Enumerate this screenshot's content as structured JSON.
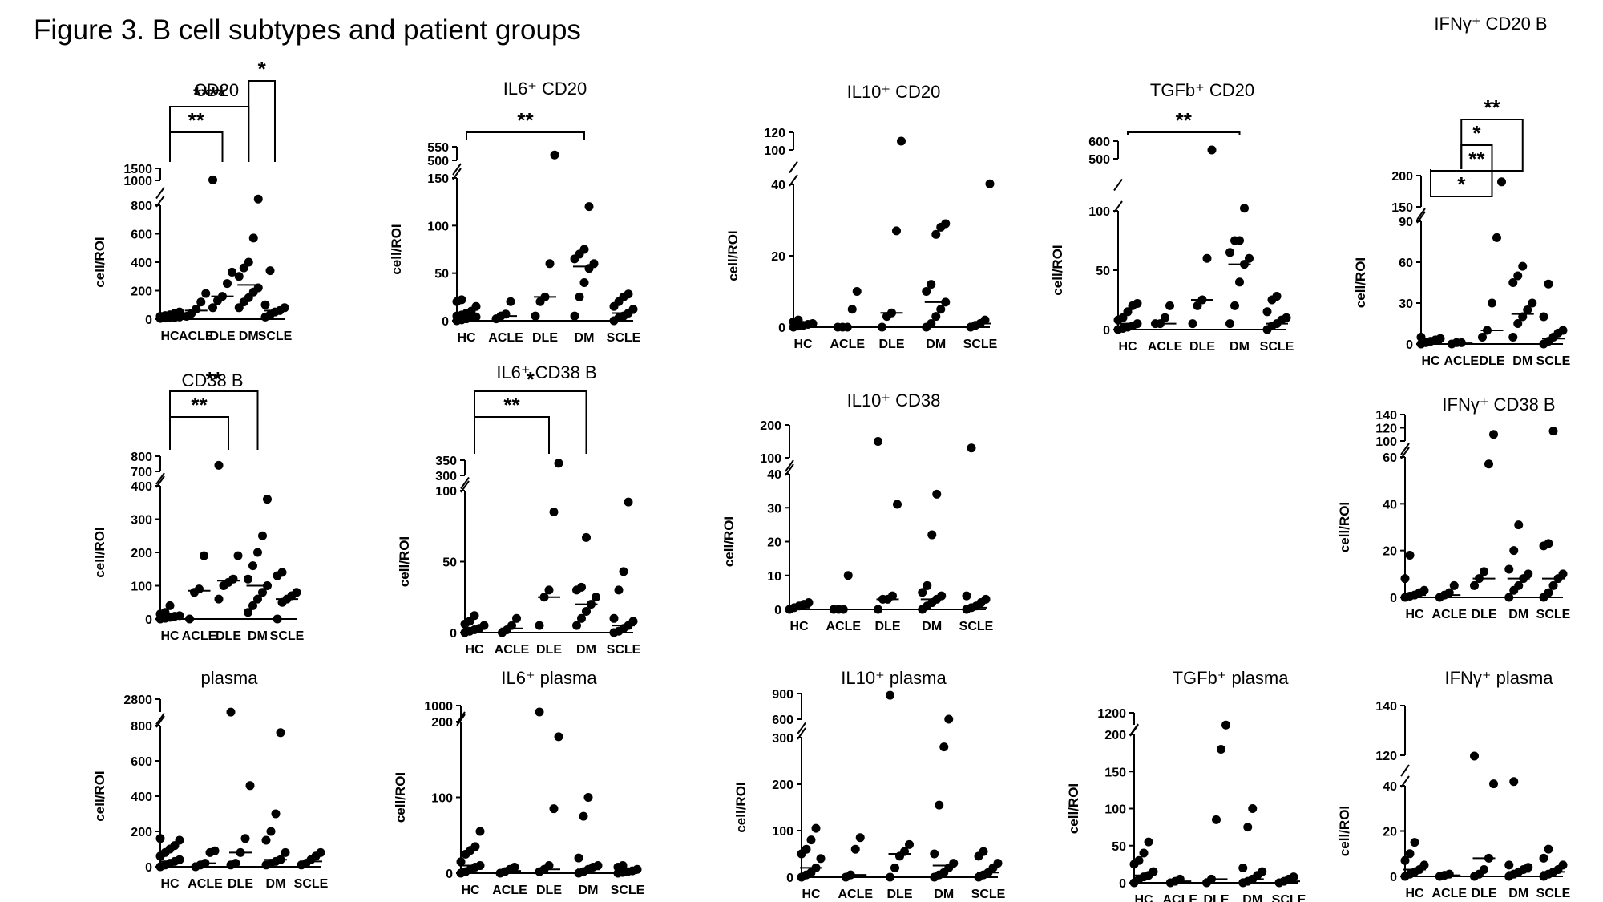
{
  "page": {
    "title": "Figure 3. B cell subtypes and patient groups"
  },
  "chart_data": [
    {
      "id": "cd20",
      "type": "scatter",
      "title": "CD20",
      "ylabel": "cell/ROI",
      "categories": [
        "HC",
        "ACLE",
        "DLE",
        "DM",
        "SCLE"
      ],
      "ylim": [
        0,
        1500
      ],
      "yticks_lower": [
        "0",
        "200",
        "400",
        "600",
        "800"
      ],
      "yticks_upper": [
        "1000",
        "1500"
      ],
      "values": [
        [
          5,
          10,
          15,
          20,
          25,
          30,
          8,
          12,
          40,
          50
        ],
        [
          20,
          40,
          70,
          120,
          180
        ],
        [
          80,
          130,
          160,
          250,
          330,
          1020
        ],
        [
          80,
          120,
          150,
          190,
          220,
          300,
          360,
          400,
          570,
          850
        ],
        [
          15,
          30,
          50,
          60,
          80,
          100,
          340
        ]
      ],
      "medians": [
        20,
        60,
        160,
        240,
        60
      ],
      "significance": [
        {
          "from": "HC",
          "to": "DLE",
          "label": "**"
        },
        {
          "from": "HC",
          "to": "DM",
          "label": "****"
        },
        {
          "from": "DM",
          "to": "SCLE",
          "label": "*"
        }
      ]
    },
    {
      "id": "il6cd20",
      "type": "scatter",
      "title": "IL6⁺ CD20",
      "ylabel": "cell/ROI",
      "categories": [
        "HC",
        "ACLE",
        "DLE",
        "DM",
        "SCLE"
      ],
      "ylim": [
        0,
        550
      ],
      "yticks_lower": [
        "0",
        "50",
        "100",
        "150"
      ],
      "yticks_upper": [
        "500",
        "550"
      ],
      "values": [
        [
          0,
          1,
          2,
          3,
          4,
          5,
          6,
          8,
          10,
          15,
          20,
          22
        ],
        [
          2,
          5,
          7,
          20
        ],
        [
          5,
          20,
          25,
          60,
          520
        ],
        [
          5,
          25,
          40,
          55,
          60,
          65,
          70,
          75,
          120
        ],
        [
          0,
          3,
          5,
          8,
          12,
          15,
          20,
          25,
          28
        ]
      ],
      "medians": [
        5,
        5,
        25,
        57,
        8
      ],
      "significance": [
        {
          "from": "HC",
          "to": "DM",
          "label": "**"
        }
      ]
    },
    {
      "id": "il10cd20",
      "type": "scatter",
      "title": "IL10⁺ CD20",
      "ylabel": "cell/ROI",
      "categories": [
        "HC",
        "ACLE",
        "DLE",
        "DM",
        "SCLE"
      ],
      "ylim": [
        0,
        120
      ],
      "yticks_lower": [
        "0",
        "20",
        "40"
      ],
      "yticks_upper": [
        "100",
        "120"
      ],
      "values": [
        [
          0,
          0.5,
          1,
          1.5,
          2,
          0.3,
          0.8
        ],
        [
          0,
          0,
          0,
          5,
          10
        ],
        [
          0,
          3,
          4,
          27,
          110
        ],
        [
          0,
          1,
          3,
          5,
          7,
          10,
          12,
          26,
          28,
          29
        ],
        [
          0,
          0.5,
          1,
          2,
          41
        ]
      ],
      "medians": [
        0.5,
        0,
        4,
        7,
        1
      ],
      "significance": []
    },
    {
      "id": "tgfbcd20",
      "type": "scatter",
      "title": "TGFb⁺ CD20",
      "ylabel": "cell/ROI",
      "categories": [
        "HC",
        "ACLE",
        "DLE",
        "DM",
        "SCLE"
      ],
      "ylim": [
        0,
        600
      ],
      "yticks_lower": [
        "0",
        "50",
        "100"
      ],
      "yticks_upper": [
        "500",
        "600"
      ],
      "values": [
        [
          0,
          1,
          2,
          3,
          5,
          8,
          10,
          15,
          20,
          22
        ],
        [
          5,
          10,
          20,
          5
        ],
        [
          5,
          20,
          25,
          60,
          550
        ],
        [
          5,
          20,
          40,
          55,
          60,
          65,
          75,
          75,
          120
        ],
        [
          0,
          3,
          5,
          8,
          10,
          15,
          25,
          28
        ]
      ],
      "medians": [
        5,
        5,
        25,
        55,
        5
      ],
      "significance": [
        {
          "from": "HC",
          "to": "DM",
          "label": "**"
        }
      ]
    },
    {
      "id": "ifngcd20",
      "type": "scatter",
      "title": "IFNγ⁺ CD20 B",
      "ylabel": "cell/ROI",
      "categories": [
        "HC",
        "ACLE",
        "DLE",
        "DM",
        "SCLE"
      ],
      "ylim": [
        0,
        200
      ],
      "yticks_lower": [
        "0",
        "30",
        "60",
        "90"
      ],
      "yticks_upper": [
        "150",
        "200"
      ],
      "values": [
        [
          0,
          1,
          2,
          3,
          4,
          5
        ],
        [
          0,
          1,
          1
        ],
        [
          5,
          10,
          30,
          78,
          190
        ],
        [
          5,
          15,
          20,
          25,
          30,
          45,
          50,
          57
        ],
        [
          0,
          2,
          5,
          8,
          10,
          20,
          44
        ]
      ],
      "medians": [
        1,
        0.5,
        10,
        22,
        4
      ],
      "significance": [
        {
          "from": "HC",
          "to": "DLE",
          "label": "*"
        },
        {
          "from": "HC",
          "to": "DM",
          "label": "**"
        },
        {
          "from": "ACLE",
          "to": "DLE",
          "label": "*"
        },
        {
          "from": "ACLE",
          "to": "DM",
          "label": "**"
        }
      ]
    },
    {
      "id": "cd38b",
      "type": "scatter",
      "title": "CD38 B",
      "ylabel": "cell/ROI",
      "categories": [
        "HC",
        "ACLE",
        "DLE",
        "DM",
        "SCLE"
      ],
      "ylim": [
        0,
        800
      ],
      "yticks_lower": [
        "0",
        "100",
        "200",
        "300",
        "400"
      ],
      "yticks_upper": [
        "700",
        "800"
      ],
      "values": [
        [
          0,
          2,
          5,
          8,
          10,
          15,
          20,
          40
        ],
        [
          0,
          80,
          90,
          190
        ],
        [
          60,
          100,
          110,
          120,
          190,
          740
        ],
        [
          20,
          40,
          60,
          80,
          100,
          120,
          160,
          200,
          250,
          360
        ],
        [
          0,
          50,
          60,
          70,
          80,
          130,
          140
        ]
      ],
      "medians": [
        8,
        85,
        115,
        100,
        60
      ],
      "significance": [
        {
          "from": "HC",
          "to": "DLE",
          "label": "**"
        },
        {
          "from": "HC",
          "to": "DM",
          "label": "**"
        }
      ]
    },
    {
      "id": "il6cd38b",
      "type": "scatter",
      "title": "IL6⁺ CD38 B",
      "ylabel": "cell/ROI",
      "categories": [
        "HC",
        "ACLE",
        "DLE",
        "DM",
        "SCLE"
      ],
      "ylim": [
        0,
        350
      ],
      "yticks_lower": [
        "0",
        "50",
        "100"
      ],
      "yticks_upper": [
        "300",
        "350"
      ],
      "values": [
        [
          0,
          1,
          2,
          3,
          5,
          6,
          8,
          12
        ],
        [
          0,
          2,
          5,
          10
        ],
        [
          5,
          25,
          30,
          85,
          340
        ],
        [
          5,
          10,
          15,
          20,
          25,
          30,
          32,
          67
        ],
        [
          0,
          1,
          3,
          5,
          8,
          10,
          30,
          43,
          92
        ]
      ],
      "medians": [
        3,
        3,
        25,
        20,
        5
      ],
      "significance": [
        {
          "from": "HC",
          "to": "DLE",
          "label": "**"
        },
        {
          "from": "HC",
          "to": "DM",
          "label": "*"
        }
      ]
    },
    {
      "id": "il10cd38",
      "type": "scatter",
      "title": "IL10⁺ CD38",
      "ylabel": "cell/ROI",
      "categories": [
        "HC",
        "ACLE",
        "DLE",
        "DM",
        "SCLE"
      ],
      "ylim": [
        0,
        200
      ],
      "yticks_lower": [
        "0",
        "10",
        "20",
        "30",
        "40"
      ],
      "yticks_upper": [
        "100",
        "200"
      ],
      "values": [
        [
          0,
          0.5,
          1,
          1.5,
          2
        ],
        [
          0,
          0,
          0,
          10
        ],
        [
          0,
          3,
          3,
          4,
          31,
          150
        ],
        [
          0,
          1,
          2,
          3,
          4,
          5,
          7,
          22,
          34
        ],
        [
          0,
          0.5,
          1,
          2,
          3,
          4,
          130
        ]
      ],
      "medians": [
        0.5,
        0,
        3,
        3,
        0.5
      ],
      "significance": []
    },
    {
      "id": "ifngcd38b",
      "type": "scatter",
      "title": "IFNγ⁺ CD38 B",
      "ylabel": "cell/ROI",
      "categories": [
        "HC",
        "ACLE",
        "DLE",
        "DM",
        "SCLE"
      ],
      "ylim": [
        0,
        140
      ],
      "yticks_lower": [
        "0",
        "20",
        "40",
        "60"
      ],
      "yticks_upper": [
        "100",
        "120",
        "140"
      ],
      "values": [
        [
          0,
          0.5,
          1,
          2,
          3,
          8,
          18
        ],
        [
          0,
          1,
          2,
          5
        ],
        [
          5,
          8,
          11,
          57,
          110
        ],
        [
          0,
          3,
          5,
          8,
          10,
          12,
          20,
          31
        ],
        [
          0,
          2,
          5,
          8,
          10,
          22,
          23,
          115
        ]
      ],
      "medians": [
        1,
        1,
        8,
        8,
        8
      ],
      "significance": []
    },
    {
      "id": "plasma",
      "type": "scatter",
      "title": "plasma",
      "ylabel": "cell/ROI",
      "categories": [
        "HC",
        "ACLE",
        "DLE",
        "DM",
        "SCLE"
      ],
      "ylim": [
        0,
        2800
      ],
      "yticks_lower": [
        "0",
        "200",
        "400",
        "600",
        "800"
      ],
      "yticks_upper": [
        "2800"
      ],
      "values": [
        [
          0,
          10,
          20,
          30,
          40,
          60,
          80,
          100,
          120,
          150,
          160
        ],
        [
          0,
          10,
          20,
          80,
          90
        ],
        [
          10,
          20,
          80,
          160,
          460,
          2780
        ],
        [
          10,
          20,
          30,
          40,
          80,
          150,
          200,
          300,
          760
        ],
        [
          10,
          20,
          40,
          60,
          80
        ]
      ],
      "medians": [
        30,
        20,
        80,
        40,
        30
      ],
      "significance": []
    },
    {
      "id": "il6plasma",
      "type": "scatter",
      "title": "IL6⁺ plasma",
      "ylabel": "cell/ROI",
      "categories": [
        "HC",
        "ACLE",
        "DLE",
        "DM",
        "SCLE"
      ],
      "ylim": [
        0,
        1000
      ],
      "yticks_lower": [
        "0",
        "100",
        "200"
      ],
      "yticks_upper": [
        "1000"
      ],
      "values": [
        [
          0,
          2,
          5,
          8,
          10,
          15,
          25,
          30,
          35,
          55
        ],
        [
          0,
          2,
          5,
          8
        ],
        [
          2,
          5,
          10,
          85,
          180,
          1000
        ],
        [
          0,
          2,
          5,
          8,
          10,
          20,
          75,
          100
        ],
        [
          0,
          1,
          2,
          3,
          5,
          8,
          10
        ]
      ],
      "medians": [
        10,
        3,
        5,
        5,
        3
      ],
      "significance": []
    },
    {
      "id": "il10plasma",
      "type": "scatter",
      "title": "IL10⁺ plasma",
      "ylabel": "cell/ROI",
      "categories": [
        "HC",
        "ACLE",
        "DLE",
        "DM",
        "SCLE"
      ],
      "ylim": [
        0,
        900
      ],
      "yticks_lower": [
        "0",
        "100",
        "200",
        "300"
      ],
      "yticks_upper": [
        "600",
        "900"
      ],
      "values": [
        [
          0,
          5,
          10,
          20,
          40,
          50,
          60,
          80,
          105
        ],
        [
          0,
          5,
          60,
          85
        ],
        [
          0,
          20,
          45,
          55,
          70,
          880
        ],
        [
          0,
          5,
          10,
          20,
          30,
          50,
          155,
          280,
          600
        ],
        [
          0,
          5,
          10,
          20,
          30,
          45,
          55
        ]
      ],
      "medians": [
        20,
        5,
        50,
        25,
        10
      ],
      "significance": []
    },
    {
      "id": "tgfbplasma",
      "type": "scatter",
      "title": "TGFb⁺ plasma",
      "ylabel": "cell/ROI",
      "categories": [
        "HC",
        "ACLE",
        "DLE",
        "DM",
        "SCLE"
      ],
      "ylim": [
        0,
        1200
      ],
      "yticks_lower": [
        "0",
        "50",
        "100",
        "150",
        "200"
      ],
      "yticks_upper": [
        "1200"
      ],
      "values": [
        [
          0,
          5,
          8,
          10,
          15,
          25,
          30,
          40,
          55
        ],
        [
          0,
          2,
          5
        ],
        [
          0,
          5,
          85,
          180,
          1180
        ],
        [
          0,
          2,
          5,
          10,
          15,
          20,
          75,
          100
        ],
        [
          0,
          2,
          5,
          8
        ]
      ],
      "medians": [
        10,
        2,
        5,
        5,
        2
      ],
      "significance": []
    },
    {
      "id": "ifngplasma",
      "type": "scatter",
      "title": "IFNγ⁺ plasma",
      "ylabel": "cell/ROI",
      "categories": [
        "HC",
        "ACLE",
        "DLE",
        "DM",
        "SCLE"
      ],
      "ylim": [
        0,
        140
      ],
      "yticks_lower": [
        "0",
        "20",
        "40"
      ],
      "yticks_upper": [
        "120",
        "140"
      ],
      "values": [
        [
          0,
          1,
          2,
          3,
          5,
          7,
          10,
          15
        ],
        [
          0,
          0.5,
          1
        ],
        [
          0,
          1,
          3,
          8,
          45,
          118
        ],
        [
          0,
          1,
          2,
          3,
          4,
          5,
          51
        ],
        [
          0,
          1,
          2,
          3,
          5,
          8,
          12
        ]
      ],
      "medians": [
        3,
        0.5,
        8,
        2,
        2
      ],
      "significance": []
    }
  ]
}
